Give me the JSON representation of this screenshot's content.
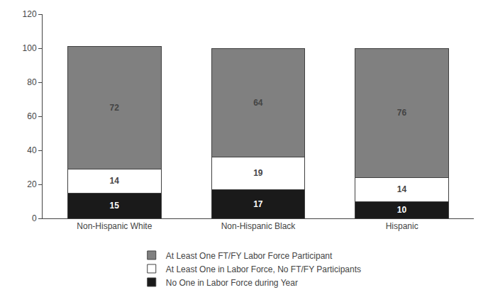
{
  "chart_data": {
    "type": "bar",
    "stacked": true,
    "categories": [
      "Non-Hispanic White",
      "Non-Hispanic Black",
      "Hispanic"
    ],
    "series": [
      {
        "name": "No One in Labor Force during Year",
        "color": "#1a1a1a",
        "values": [
          15,
          17,
          10
        ]
      },
      {
        "name": "At Least One in Labor Force, No FT/FY Participants",
        "color": "#ffffff",
        "values": [
          14,
          19,
          14
        ]
      },
      {
        "name": "At Least One FT/FY Labor Force Participant",
        "color": "#808080",
        "values": [
          72,
          64,
          76
        ]
      }
    ],
    "ylim": [
      0,
      120
    ],
    "yticks": [
      0,
      20,
      40,
      60,
      80,
      100,
      120
    ],
    "grid": false,
    "data_labels": true,
    "legend": "bottom"
  }
}
